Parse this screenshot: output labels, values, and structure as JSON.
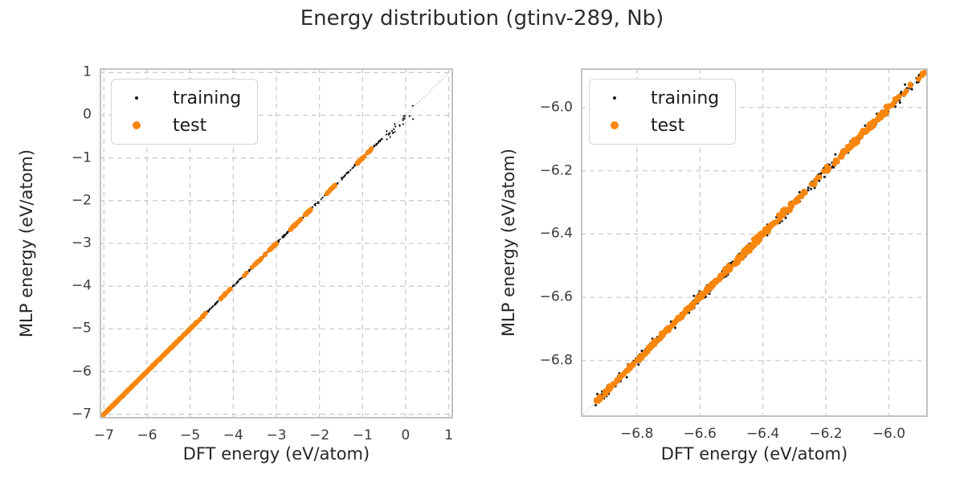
{
  "title": "Energy distribution (gtinv-289, Nb)",
  "legend": {
    "items": [
      {
        "label": "training",
        "marker": "dot-icon",
        "color": "#141414"
      },
      {
        "label": "test",
        "marker": "dot-icon",
        "color": "#f8860d"
      }
    ]
  },
  "style": {
    "background": "#ffffff",
    "training_color": "#141414",
    "test_color": "#f8860d",
    "grid_color": "#cccccc",
    "border_color": "#c3c3c3",
    "identity_line_color": "#b0b0b0",
    "title_color": "#2d2d2d",
    "tick_color": "#3c3c3c"
  },
  "chart_data": [
    {
      "name": "overview",
      "type": "scatter",
      "xlabel": "DFT energy (eV/atom)",
      "ylabel": "MLP energy (eV/atom)",
      "xlim": [
        -7.1,
        1.1
      ],
      "ylim": [
        -7.1,
        1.1
      ],
      "xticks": [
        -7,
        -6,
        -5,
        -4,
        -3,
        -2,
        -1,
        0,
        1
      ],
      "xtick_labels": [
        "−7",
        "−6",
        "−5",
        "−4",
        "−3",
        "−2",
        "−1",
        "0",
        "1"
      ],
      "yticks": [
        1,
        0,
        -1,
        -2,
        -3,
        -4,
        -5,
        -6,
        -7
      ],
      "ytick_labels": [
        "1",
        "0",
        "−1",
        "−2",
        "−3",
        "−4",
        "−5",
        "−6",
        "−7"
      ],
      "grid": true,
      "grid_style": "dashed",
      "identity_line": true,
      "relationship": "points lie along y = x identity line",
      "legend_position": "upper left",
      "series": [
        {
          "name": "training",
          "color": "#141414",
          "radius": 1.1,
          "seed": 42,
          "segments": [
            {
              "x0": -7.09,
              "x1": -0.52,
              "n": 430,
              "noise": 0.012
            },
            {
              "x0": -0.52,
              "x1": 0.17,
              "n": 22,
              "noise": 0.05,
              "bias": -0.05
            }
          ],
          "points": [
            [
              -0.02,
              -0.08
            ],
            [
              0.09,
              -0.02
            ],
            [
              0.17,
              -0.09
            ],
            [
              -0.3,
              -0.42
            ]
          ]
        },
        {
          "name": "test",
          "color": "#f8860d",
          "radius": 3.0,
          "seed": 7,
          "segments": [
            {
              "x0": -7.09,
              "x1": -4.85,
              "n": 330,
              "noise": 0.005
            },
            {
              "x0": -4.85,
              "x1": -0.55,
              "n": 155,
              "noise": 0.008,
              "clusters": 30,
              "spread": 0.07
            }
          ],
          "points": []
        }
      ]
    },
    {
      "name": "zoomed",
      "type": "scatter",
      "xlabel": "DFT energy (eV/atom)",
      "ylabel": "MLP energy (eV/atom)",
      "xlim": [
        -6.978,
        -5.876
      ],
      "ylim": [
        -6.978,
        -5.876
      ],
      "xticks": [
        -6.8,
        -6.6,
        -6.4,
        -6.2,
        -6.0
      ],
      "xtick_labels": [
        "−6.8",
        "−6.6",
        "−6.4",
        "−6.2",
        "−6.0"
      ],
      "yticks": [
        -6.0,
        -6.2,
        -6.4,
        -6.6,
        -6.8
      ],
      "ytick_labels": [
        "−6.0",
        "−6.2",
        "−6.4",
        "−6.6",
        "−6.8"
      ],
      "grid": true,
      "grid_style": "dashed",
      "identity_line": true,
      "relationship": "points lie along y = x identity line",
      "legend_position": "upper left",
      "series": [
        {
          "name": "training",
          "color": "#141414",
          "radius": 1.5,
          "seed": 99,
          "segments": [
            {
              "x0": -6.932,
              "x1": -5.882,
              "n": 380,
              "noise": 0.009
            }
          ],
          "points": []
        },
        {
          "name": "test",
          "color": "#f8860d",
          "radius": 3.4,
          "seed": 13,
          "segments": [
            {
              "x0": -6.932,
              "x1": -6.52,
              "n": 240,
              "noise": 0.003
            },
            {
              "x0": -6.52,
              "x1": -5.884,
              "n": 270,
              "noise": 0.005,
              "clusters": 44,
              "spread": 0.05
            }
          ],
          "points": []
        }
      ]
    }
  ]
}
